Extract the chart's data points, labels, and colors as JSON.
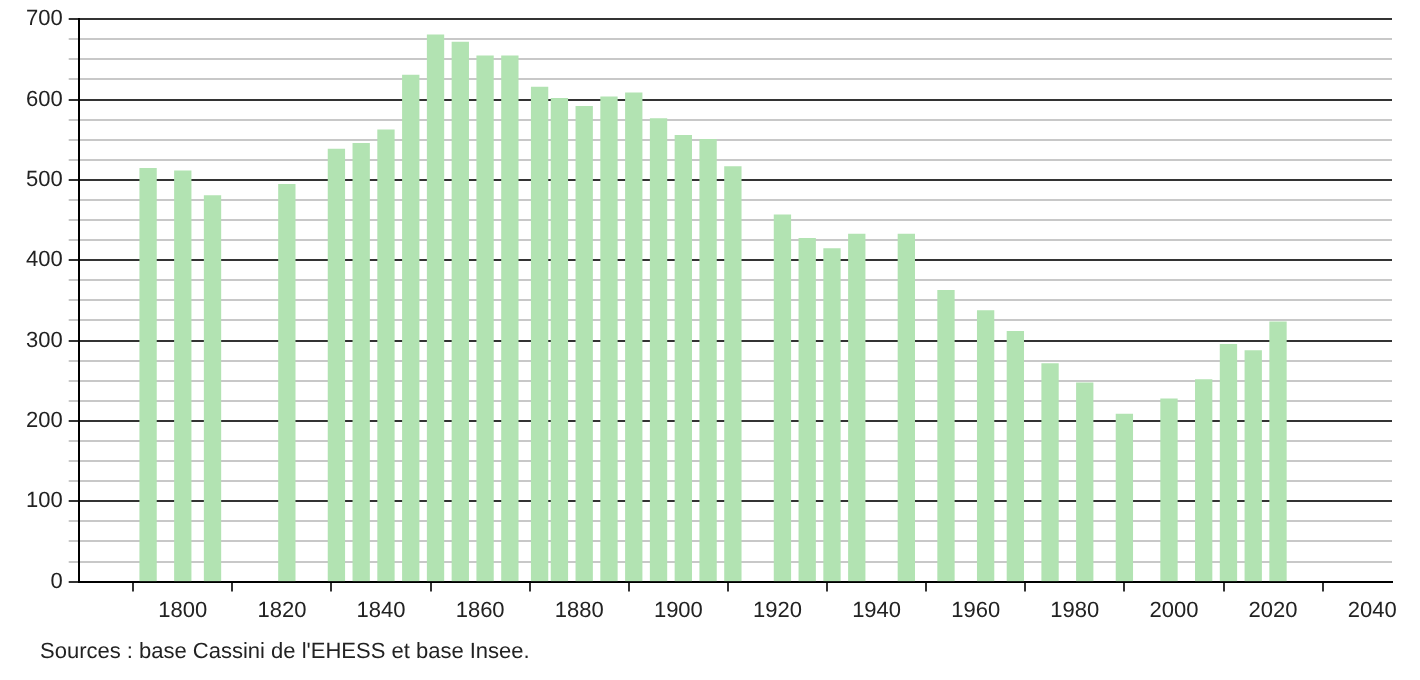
{
  "chart_data": {
    "type": "bar",
    "x": [
      1793,
      1800,
      1806,
      1821,
      1831,
      1836,
      1841,
      1846,
      1851,
      1856,
      1861,
      1866,
      1872,
      1876,
      1881,
      1886,
      1891,
      1896,
      1901,
      1906,
      1911,
      1921,
      1926,
      1931,
      1936,
      1946,
      1954,
      1962,
      1968,
      1975,
      1982,
      1990,
      1999,
      2006,
      2011,
      2016,
      2021
    ],
    "values": [
      514,
      511,
      480,
      494,
      538,
      545,
      562,
      630,
      680,
      671,
      654,
      654,
      615,
      601,
      591,
      603,
      608,
      576,
      555,
      550,
      516,
      456,
      427,
      414,
      432,
      432,
      362,
      337,
      311,
      271,
      247,
      208,
      227,
      251,
      295,
      287,
      323
    ],
    "color": "#b2e3b2",
    "xlim": [
      1779,
      2044
    ],
    "xticks": [
      1800,
      1820,
      1840,
      1860,
      1880,
      1900,
      1920,
      1940,
      1960,
      1980,
      2000,
      2020,
      2040
    ],
    "ylim": [
      0,
      700
    ],
    "yticks": [
      0,
      {
        "value": 25,
        "label": null
      },
      {
        "value": 50,
        "label": null
      },
      {
        "value": 75,
        "label": null
      },
      100,
      {
        "value": 125,
        "label": null
      },
      {
        "value": 150,
        "label": null
      },
      {
        "value": 175,
        "label": null
      },
      200,
      {
        "value": 225,
        "label": null
      },
      {
        "value": 250,
        "label": null
      },
      {
        "value": 275,
        "label": null
      },
      300,
      {
        "value": 325,
        "label": null
      },
      {
        "value": 350,
        "label": null
      },
      {
        "value": 375,
        "label": null
      },
      400,
      {
        "value": 425,
        "label": null
      },
      {
        "value": 450,
        "label": null
      },
      {
        "value": 475,
        "label": null
      },
      500,
      {
        "value": 525,
        "label": null
      },
      {
        "value": 550,
        "label": null
      },
      {
        "value": 575,
        "label": null
      },
      600,
      {
        "value": 625,
        "label": null
      },
      {
        "value": 650,
        "label": null
      },
      {
        "value": 675,
        "label": null
      },
      700
    ],
    "grid": "y",
    "annotations": [
      "Sources : base Cassini de l'EHESS et base Insee."
    ]
  }
}
